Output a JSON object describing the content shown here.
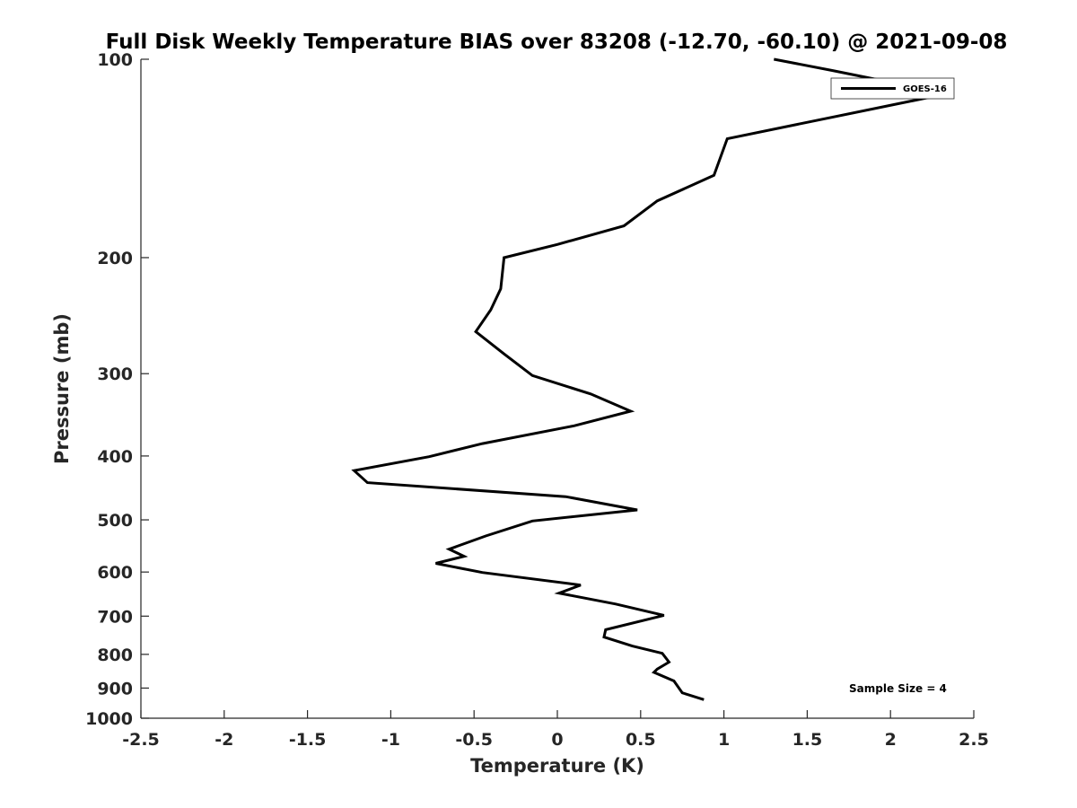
{
  "chart_data": {
    "type": "line",
    "title": "Full Disk Weekly Temperature BIAS over 83208 (-12.70, -60.10) @ 2021-09-08",
    "xlabel": "Temperature (K)",
    "ylabel": "Pressure (mb)",
    "xlim": [
      -2.5,
      2.5
    ],
    "ylim": [
      100,
      1000
    ],
    "y_scale": "log",
    "y_reversed": true,
    "grid": false,
    "legend_position": "top-right",
    "x_ticks": [
      "-2.5",
      "-2",
      "-1.5",
      "-1",
      "-0.5",
      "0",
      "0.5",
      "1",
      "1.5",
      "2",
      "2.5"
    ],
    "x_tick_values": [
      -2.5,
      -2,
      -1.5,
      -1,
      -0.5,
      0,
      0.5,
      1,
      1.5,
      2,
      2.5
    ],
    "y_ticks": [
      "100",
      "200",
      "300",
      "400",
      "500",
      "600",
      "700",
      "800",
      "900",
      "1000"
    ],
    "y_tick_values": [
      100,
      200,
      300,
      400,
      500,
      600,
      700,
      800,
      900,
      1000
    ],
    "annotation": "Sample Size = 4",
    "series": [
      {
        "name": "GOES-16",
        "color": "#000000",
        "points": [
          {
            "x": 1.3,
            "p": 100
          },
          {
            "x": 1.65,
            "p": 104
          },
          {
            "x": 2.05,
            "p": 109
          },
          {
            "x": 2.25,
            "p": 114
          },
          {
            "x": 1.02,
            "p": 132
          },
          {
            "x": 0.94,
            "p": 150
          },
          {
            "x": 0.6,
            "p": 164
          },
          {
            "x": 0.4,
            "p": 179
          },
          {
            "x": 0.0,
            "p": 191
          },
          {
            "x": -0.32,
            "p": 200
          },
          {
            "x": -0.34,
            "p": 223
          },
          {
            "x": -0.4,
            "p": 240
          },
          {
            "x": -0.49,
            "p": 259
          },
          {
            "x": -0.32,
            "p": 280
          },
          {
            "x": -0.15,
            "p": 302
          },
          {
            "x": 0.2,
            "p": 322
          },
          {
            "x": 0.44,
            "p": 342
          },
          {
            "x": 0.1,
            "p": 360
          },
          {
            "x": -0.45,
            "p": 383
          },
          {
            "x": -0.77,
            "p": 401
          },
          {
            "x": -1.22,
            "p": 421
          },
          {
            "x": -1.14,
            "p": 439
          },
          {
            "x": 0.05,
            "p": 461
          },
          {
            "x": 0.48,
            "p": 483
          },
          {
            "x": -0.15,
            "p": 502
          },
          {
            "x": -0.43,
            "p": 529
          },
          {
            "x": -0.65,
            "p": 554
          },
          {
            "x": -0.56,
            "p": 568
          },
          {
            "x": -0.73,
            "p": 582
          },
          {
            "x": -0.45,
            "p": 601
          },
          {
            "x": 0.14,
            "p": 628
          },
          {
            "x": 0.01,
            "p": 646
          },
          {
            "x": 0.35,
            "p": 671
          },
          {
            "x": 0.64,
            "p": 698
          },
          {
            "x": 0.29,
            "p": 734
          },
          {
            "x": 0.28,
            "p": 753
          },
          {
            "x": 0.45,
            "p": 777
          },
          {
            "x": 0.63,
            "p": 797
          },
          {
            "x": 0.67,
            "p": 822
          },
          {
            "x": 0.6,
            "p": 842
          },
          {
            "x": 0.58,
            "p": 852
          },
          {
            "x": 0.7,
            "p": 878
          },
          {
            "x": 0.75,
            "p": 915
          },
          {
            "x": 0.88,
            "p": 937
          }
        ]
      }
    ]
  }
}
